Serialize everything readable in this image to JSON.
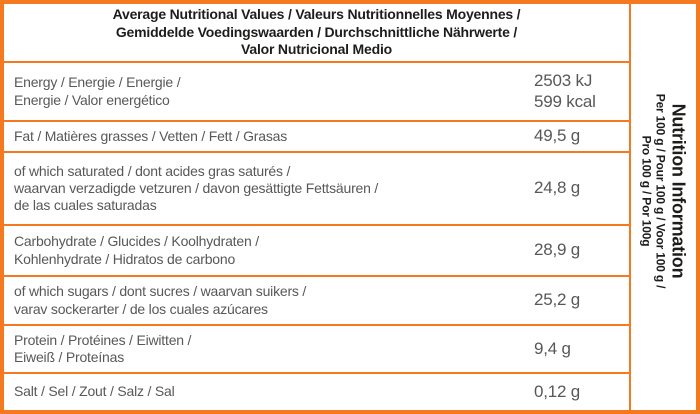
{
  "colors": {
    "border_orange": "#F5791F",
    "header_text": "#1D1D1B",
    "body_text": "#57585A",
    "background": "#FFFFFF"
  },
  "header": {
    "title": "Average Nutritional Values / Valeurs Nutritionnelles Moyennes /\nGemiddelde Voedingswaarden / Durchschnittliche Nährwerte /\nValor Nutricional Medio"
  },
  "sidebar": {
    "title": "Nutrition Information",
    "per_100": "Per 100 g / Pour 100 g / Voor 100 g /\nPro 100 g / Por 100g"
  },
  "rows": [
    {
      "name": "energy",
      "label": "Energy / Energie / Energie /\nEnergie / Valor energético",
      "value": "2503 kJ\n599 kcal"
    },
    {
      "name": "fat",
      "label": "Fat / Matières grasses / Vetten / Fett / Grasas",
      "value": "49,5 g"
    },
    {
      "name": "saturated-fat",
      "label": "of which saturated / dont acides gras saturés /\nwaarvan verzadigde vetzuren / davon gesättigte Fettsäuren /\nde las cuales saturadas",
      "value": "24,8 g"
    },
    {
      "name": "carbohydrate",
      "label": "Carbohydrate / Glucides / Koolhydraten /\nKohlenhydrate / Hidratos de carbono",
      "value": "28,9 g"
    },
    {
      "name": "sugars",
      "label": "of which sugars / dont sucres / waarvan suikers /\nvarav sockerarter / de los cuales azúcares",
      "value": "25,2 g"
    },
    {
      "name": "protein",
      "label": "Protein / Protéines / Eiwitten /\nEiweiß / Proteínas",
      "value": "9,4 g"
    },
    {
      "name": "salt",
      "label": "Salt / Sel / Zout / Salz / Sal",
      "value": "0,12 g"
    }
  ]
}
